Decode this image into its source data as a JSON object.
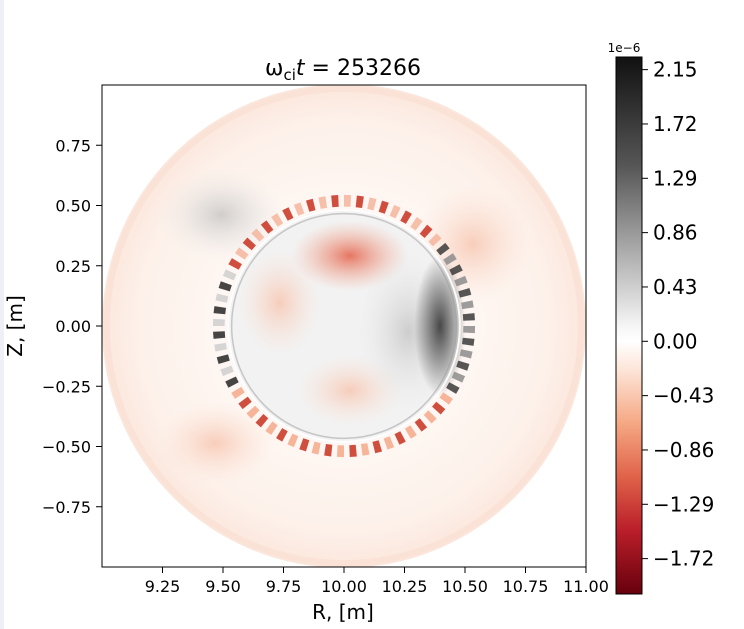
{
  "chart_data": {
    "type": "heatmap",
    "title_main": "ω",
    "title_sub": "ci",
    "title_var": "t",
    "title_eq": " = 253266",
    "xlabel": "R, [m]",
    "ylabel": "Z, [m]",
    "xlim": [
      9.0,
      11.0
    ],
    "ylim": [
      -1.0,
      1.0
    ],
    "x_ticks": [
      "9.25",
      "9.50",
      "9.75",
      "10.00",
      "10.25",
      "10.50",
      "10.75",
      "11.00"
    ],
    "x_tick_values": [
      9.25,
      9.5,
      9.75,
      10.0,
      10.25,
      10.5,
      10.75,
      11.0
    ],
    "y_ticks": [
      "0.75",
      "0.50",
      "0.25",
      "0.00",
      "−0.25",
      "−0.50",
      "−0.75"
    ],
    "y_tick_values": [
      0.75,
      0.5,
      0.25,
      0.0,
      -0.25,
      -0.5,
      -0.75
    ],
    "plasma_boundary": {
      "center_r": 10.0,
      "center_z": 0.0,
      "radius": 1.0
    },
    "mode_ring": {
      "center_r": 10.0,
      "center_z": 0.0,
      "radius": 0.52
    },
    "colorbar": {
      "offset_label": "1e−6",
      "min": -2.0,
      "max": 2.25,
      "tick_labels": [
        "2.15",
        "1.72",
        "1.29",
        "0.86",
        "0.43",
        "0.00",
        "−0.43",
        "−0.86",
        "−1.29",
        "−1.72"
      ],
      "tick_values": [
        2.15,
        1.72,
        1.29,
        0.86,
        0.43,
        0.0,
        -0.43,
        -0.86,
        -1.29,
        -1.72
      ],
      "colors": {
        "top": "#1a1a1a",
        "mid": "#ffffff",
        "bottom": "#6b0010"
      }
    }
  }
}
